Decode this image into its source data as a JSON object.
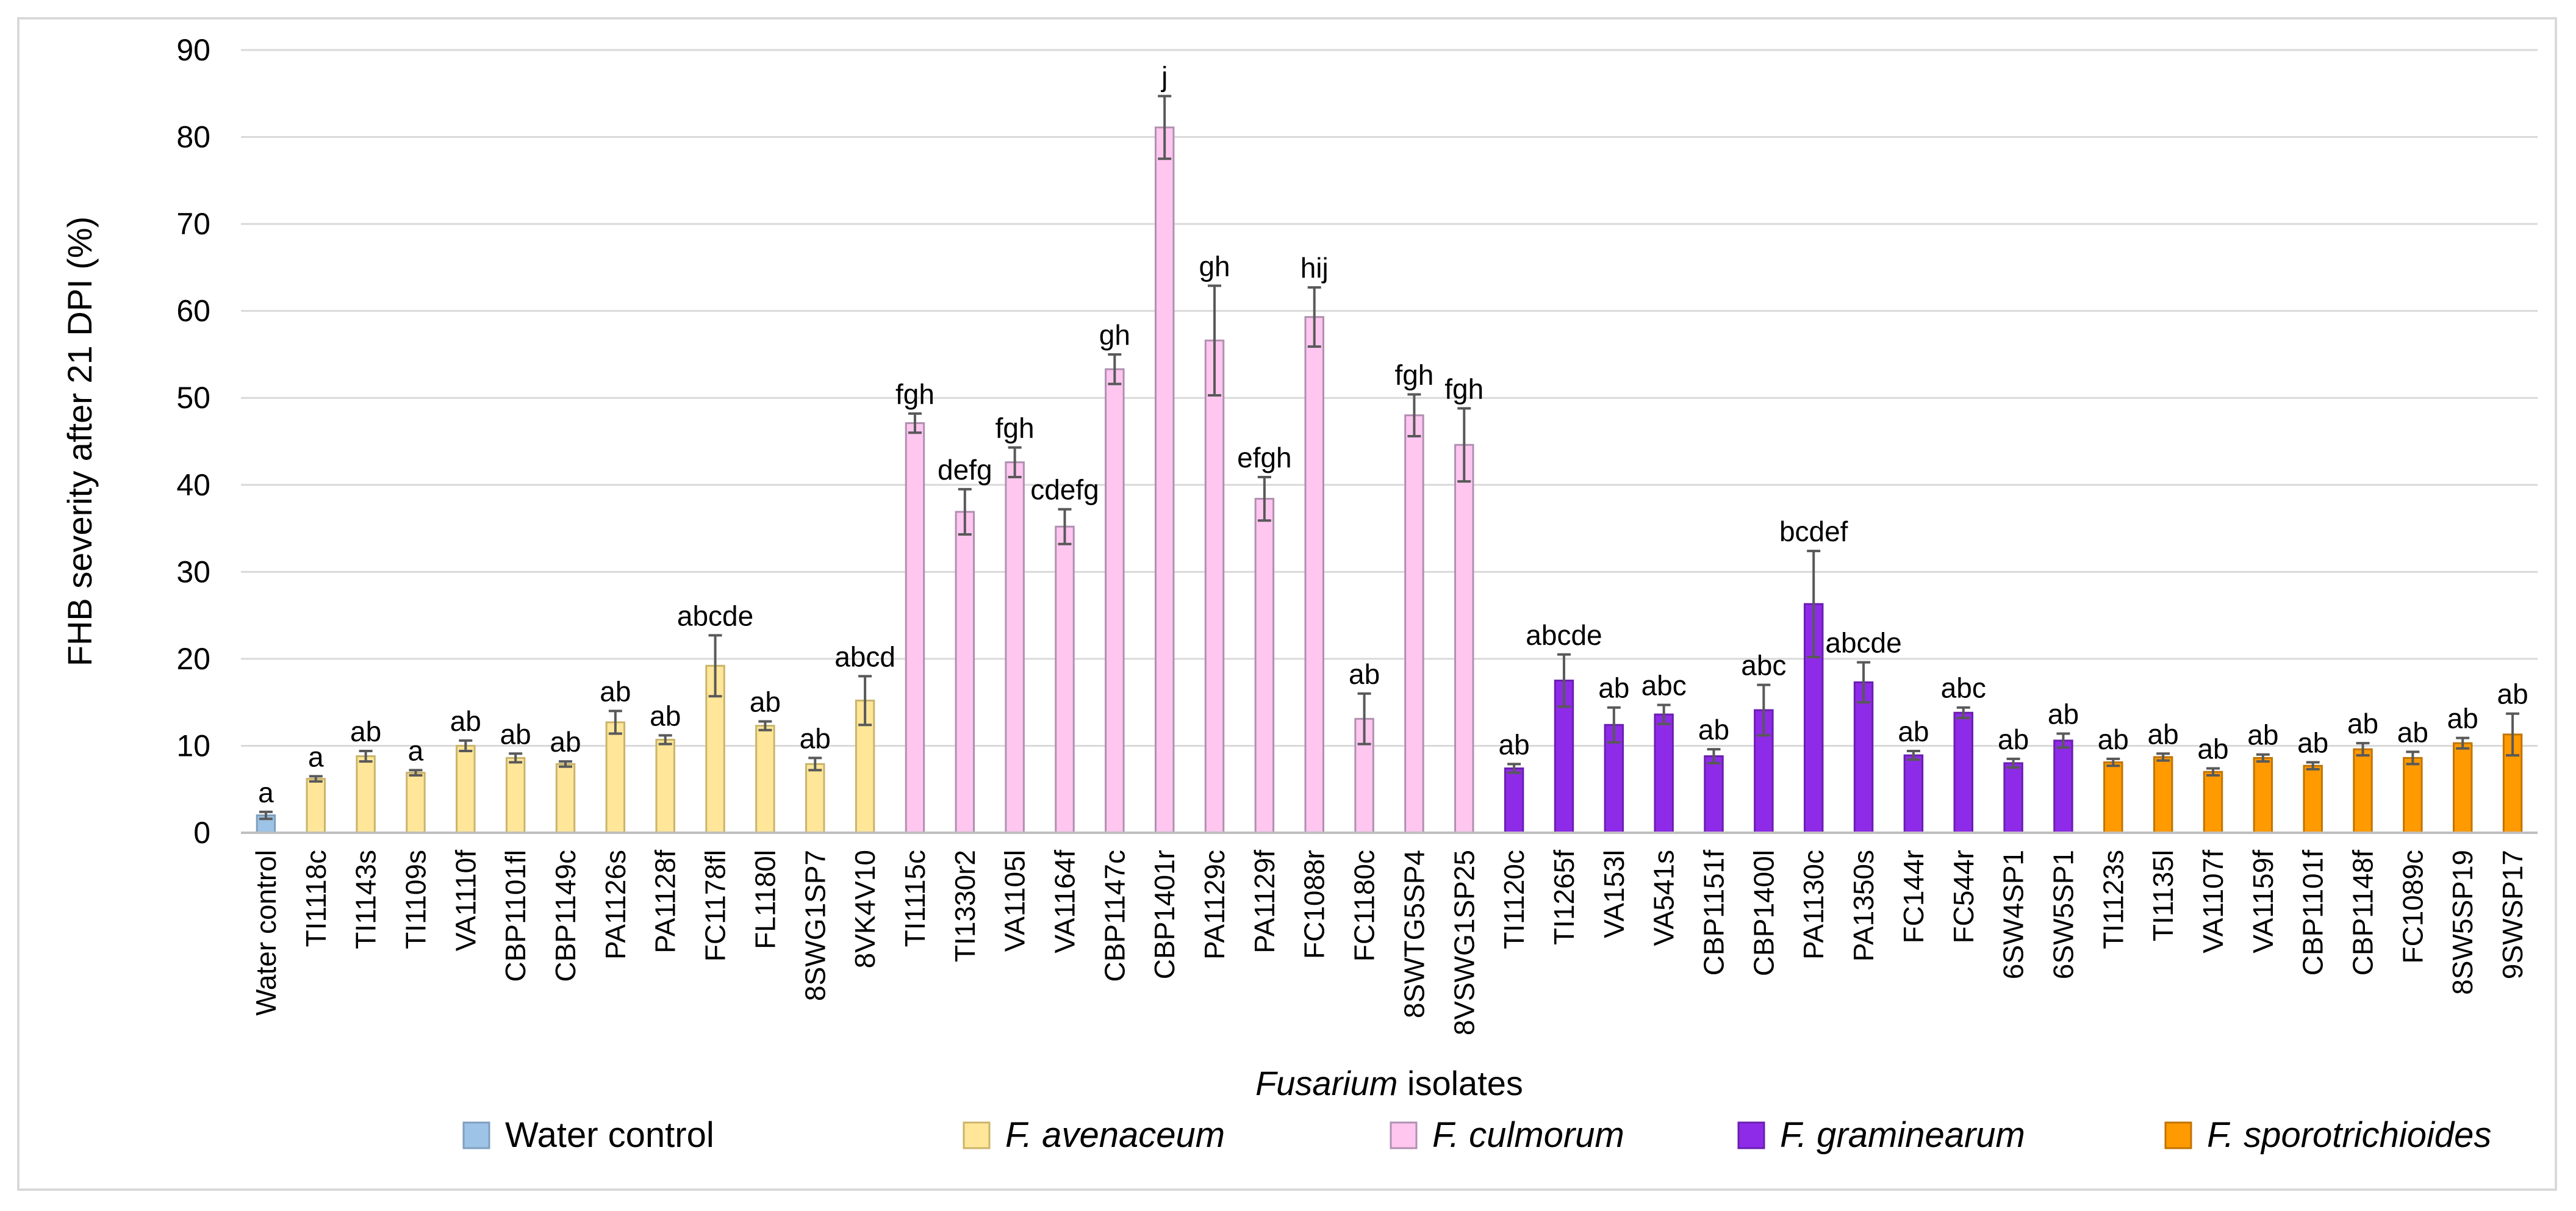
{
  "chart_data": {
    "type": "bar",
    "ylabel": "FHB severity after 21 DPI (%)",
    "xlabel_italic": "Fusarium",
    "xlabel_rest": " isolates",
    "ylim": [
      0,
      90
    ],
    "yticks": [
      0,
      10,
      20,
      30,
      40,
      50,
      60,
      70,
      80,
      90
    ],
    "grid": true,
    "legend_position": "bottom",
    "groups": [
      {
        "name": "Water control",
        "italic": false,
        "color": "#9DC3E6",
        "edge": "#7F9FBF"
      },
      {
        "name": "F. avenaceum",
        "italic": true,
        "color": "#FFE699",
        "edge": "#C9B46A"
      },
      {
        "name": "F. culmorum",
        "italic": true,
        "color": "#FFC6F0",
        "edge": "#B090B0"
      },
      {
        "name": "F. graminearum",
        "italic": true,
        "color": "#8E2BE8",
        "edge": "#6A1FB0"
      },
      {
        "name": "F. sporotrichioides",
        "italic": true,
        "color": "#FF9A00",
        "edge": "#C07400"
      }
    ],
    "bars": [
      {
        "label": "Water control",
        "group": 0,
        "value": 2.0,
        "err": 0.4,
        "sig": "a"
      },
      {
        "label": "TI1118c",
        "group": 1,
        "value": 6.2,
        "err": 0.3,
        "sig": "a"
      },
      {
        "label": "TI1143s",
        "group": 1,
        "value": 8.8,
        "err": 0.6,
        "sig": "ab"
      },
      {
        "label": "TI1109s",
        "group": 1,
        "value": 6.9,
        "err": 0.3,
        "sig": "a"
      },
      {
        "label": "VA1110f",
        "group": 1,
        "value": 10.0,
        "err": 0.6,
        "sig": "ab"
      },
      {
        "label": "CBP1101fl",
        "group": 1,
        "value": 8.6,
        "err": 0.5,
        "sig": "ab"
      },
      {
        "label": "CBP1149c",
        "group": 1,
        "value": 7.9,
        "err": 0.3,
        "sig": "ab"
      },
      {
        "label": "PA1126s",
        "group": 1,
        "value": 12.7,
        "err": 1.3,
        "sig": "ab"
      },
      {
        "label": "PA1128f",
        "group": 1,
        "value": 10.7,
        "err": 0.5,
        "sig": "ab"
      },
      {
        "label": "FC1178fl",
        "group": 1,
        "value": 19.2,
        "err": 3.5,
        "sig": "abcde"
      },
      {
        "label": "FL1180l",
        "group": 1,
        "value": 12.3,
        "err": 0.5,
        "sig": "ab"
      },
      {
        "label": "8SWG1SP7",
        "group": 1,
        "value": 7.9,
        "err": 0.7,
        "sig": "ab"
      },
      {
        "label": "8VK4V10",
        "group": 1,
        "value": 15.2,
        "err": 2.8,
        "sig": "abcd"
      },
      {
        "label": "TI1115c",
        "group": 2,
        "value": 47.1,
        "err": 1.1,
        "sig": "fgh"
      },
      {
        "label": "TI1330r2",
        "group": 2,
        "value": 36.9,
        "err": 2.6,
        "sig": "defg"
      },
      {
        "label": "VA1105l",
        "group": 2,
        "value": 42.6,
        "err": 1.7,
        "sig": "fgh"
      },
      {
        "label": "VA1164f",
        "group": 2,
        "value": 35.2,
        "err": 2.0,
        "sig": "cdefg"
      },
      {
        "label": "CBP1147c",
        "group": 2,
        "value": 53.3,
        "err": 1.7,
        "sig": "gh"
      },
      {
        "label": "CBP1401r",
        "group": 2,
        "value": 81.1,
        "err": 3.6,
        "sig": "j"
      },
      {
        "label": "PA1129c",
        "group": 2,
        "value": 56.6,
        "err": 6.3,
        "sig": "gh"
      },
      {
        "label": "PA1129f",
        "group": 2,
        "value": 38.4,
        "err": 2.5,
        "sig": "efgh"
      },
      {
        "label": "FC1088r",
        "group": 2,
        "value": 59.3,
        "err": 3.4,
        "sig": "hij"
      },
      {
        "label": "FC1180c",
        "group": 2,
        "value": 13.1,
        "err": 2.9,
        "sig": "ab"
      },
      {
        "label": "8SWTG5SP4",
        "group": 2,
        "value": 48.0,
        "err": 2.4,
        "sig": "fgh"
      },
      {
        "label": "8VSWG1SP25",
        "group": 2,
        "value": 44.6,
        "err": 4.2,
        "sig": "fgh"
      },
      {
        "label": "TI1120c",
        "group": 3,
        "value": 7.4,
        "err": 0.5,
        "sig": "ab"
      },
      {
        "label": "TI1265f",
        "group": 3,
        "value": 17.5,
        "err": 3.0,
        "sig": "abcde"
      },
      {
        "label": "VA153l",
        "group": 3,
        "value": 12.4,
        "err": 2.0,
        "sig": "ab"
      },
      {
        "label": "VA541s",
        "group": 3,
        "value": 13.6,
        "err": 1.1,
        "sig": "abc"
      },
      {
        "label": "CBP1151f",
        "group": 3,
        "value": 8.8,
        "err": 0.8,
        "sig": "ab"
      },
      {
        "label": "CBP1400l",
        "group": 3,
        "value": 14.1,
        "err": 2.9,
        "sig": "abc"
      },
      {
        "label": "PA1130c",
        "group": 3,
        "value": 26.3,
        "err": 6.1,
        "sig": "bcdef"
      },
      {
        "label": "PA1350s",
        "group": 3,
        "value": 17.3,
        "err": 2.3,
        "sig": "abcde"
      },
      {
        "label": "FC144r",
        "group": 3,
        "value": 8.9,
        "err": 0.5,
        "sig": "ab"
      },
      {
        "label": "FC544r",
        "group": 3,
        "value": 13.8,
        "err": 0.6,
        "sig": "abc"
      },
      {
        "label": "6SW4SP1",
        "group": 3,
        "value": 8.0,
        "err": 0.5,
        "sig": "ab"
      },
      {
        "label": "6SW5SP1",
        "group": 3,
        "value": 10.6,
        "err": 0.8,
        "sig": "ab"
      },
      {
        "label": "TI1123s",
        "group": 4,
        "value": 8.1,
        "err": 0.4,
        "sig": "ab"
      },
      {
        "label": "TI1135l",
        "group": 4,
        "value": 8.7,
        "err": 0.4,
        "sig": "ab"
      },
      {
        "label": "VA1107f",
        "group": 4,
        "value": 7.0,
        "err": 0.4,
        "sig": "ab"
      },
      {
        "label": "VA1159f",
        "group": 4,
        "value": 8.6,
        "err": 0.4,
        "sig": "ab"
      },
      {
        "label": "CBP1101f",
        "group": 4,
        "value": 7.7,
        "err": 0.4,
        "sig": "ab"
      },
      {
        "label": "CBP1148f",
        "group": 4,
        "value": 9.6,
        "err": 0.7,
        "sig": "ab"
      },
      {
        "label": "FC1089c",
        "group": 4,
        "value": 8.6,
        "err": 0.7,
        "sig": "ab"
      },
      {
        "label": "8SW5SP19",
        "group": 4,
        "value": 10.3,
        "err": 0.6,
        "sig": "ab"
      },
      {
        "label": "9SWSP17",
        "group": 4,
        "value": 11.3,
        "err": 2.4,
        "sig": "ab"
      }
    ]
  }
}
